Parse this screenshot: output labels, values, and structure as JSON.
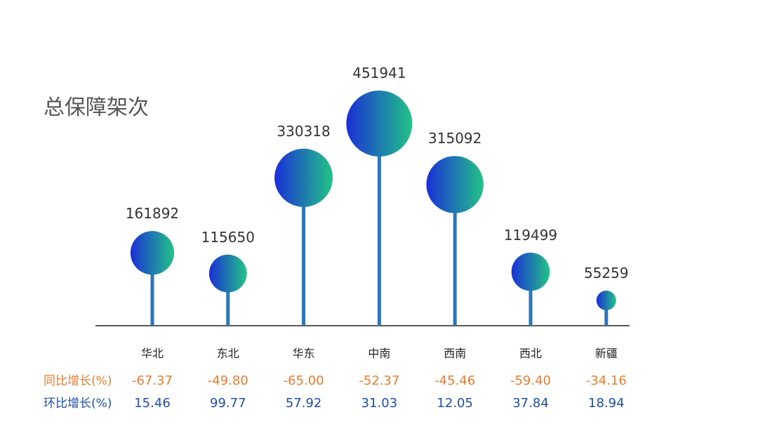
{
  "chart_data": {
    "type": "lollipop",
    "title": "总保障架次",
    "categories": [
      "华北",
      "东北",
      "华东",
      "中南",
      "西南",
      "西北",
      "新疆"
    ],
    "values": [
      161892,
      115650,
      330318,
      451941,
      315092,
      119499,
      55259
    ],
    "ylim": [
      0,
      451941
    ],
    "rows": [
      {
        "name": "同比增长(%)",
        "color": "#ED7D31",
        "values": [
          "-67.37",
          "-49.80",
          "-65.00",
          "-52.37",
          "-45.46",
          "-59.40",
          "-34.16"
        ]
      },
      {
        "name": "环比增长(%)",
        "color": "#1F4EAD",
        "values": [
          "15.46",
          "99.77",
          "57.92",
          "31.03",
          "12.05",
          "37.84",
          "18.94"
        ]
      }
    ],
    "colors": {
      "stem": "#2E75B6",
      "gradient_start": "#1A2FD6",
      "gradient_end": "#22C487",
      "baseline": "#222222"
    },
    "grid": false,
    "legend": "none"
  }
}
